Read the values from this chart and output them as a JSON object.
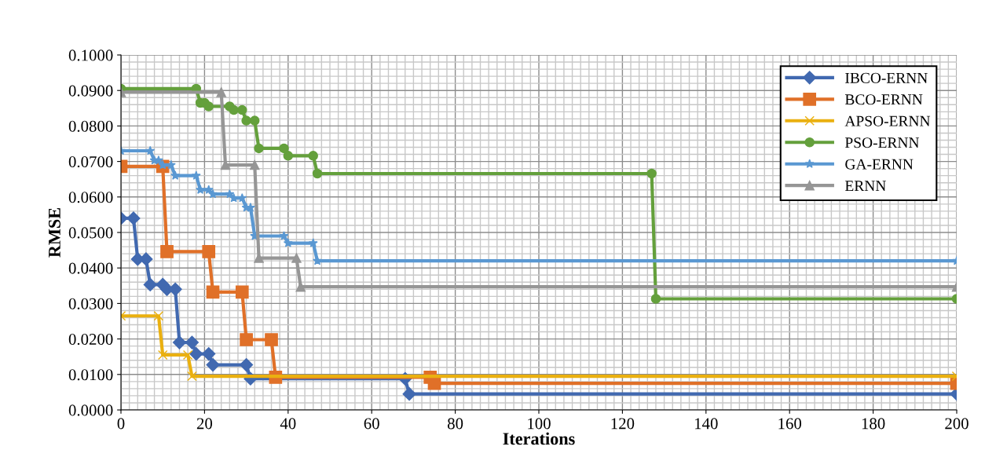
{
  "chart_data": {
    "type": "line",
    "xlabel": "Iterations",
    "ylabel": "RMSE",
    "xlim": [
      0,
      200
    ],
    "xticks": [
      0,
      20,
      40,
      60,
      80,
      100,
      120,
      140,
      160,
      180,
      200
    ],
    "ylim": [
      0,
      0.1
    ],
    "yticks": [
      {
        "value": 0,
        "label": "0.0000"
      },
      {
        "value": 0.01,
        "label": "0.0100"
      },
      {
        "value": 0.02,
        "label": "0.0200"
      },
      {
        "value": 0.03,
        "label": "0.0300"
      },
      {
        "value": 0.04,
        "label": "0.0400"
      },
      {
        "value": 0.05,
        "label": "0.0500"
      },
      {
        "value": 0.06,
        "label": "0.0600"
      },
      {
        "value": 0.07,
        "label": "0.0700"
      },
      {
        "value": 0.08,
        "label": "0.0800"
      },
      {
        "value": 0.09,
        "label": "0.0900"
      },
      {
        "value": 0.1,
        "label": "0.1000"
      }
    ],
    "grid": true,
    "legend": "top right",
    "line_style": "solid",
    "series": [
      {
        "name": "IBCO-ERNN",
        "color": "#4169b0",
        "marker": "diamond",
        "x": [
          0,
          3,
          4,
          6,
          7,
          10,
          11,
          13,
          14,
          17,
          18,
          21,
          22,
          30,
          31,
          68,
          69,
          200
        ],
        "values": [
          0.054,
          0.054,
          0.0425,
          0.0425,
          0.0353,
          0.0353,
          0.034,
          0.034,
          0.019,
          0.019,
          0.0158,
          0.0158,
          0.0127,
          0.0127,
          0.0088,
          0.0088,
          0.0045,
          0.0045
        ]
      },
      {
        "name": "BCO-ERNN",
        "color": "#e07028",
        "marker": "square",
        "x": [
          0,
          10,
          11,
          21,
          22,
          29,
          30,
          36,
          37,
          74,
          75,
          200
        ],
        "values": [
          0.0686,
          0.0686,
          0.0446,
          0.0446,
          0.0332,
          0.0332,
          0.0198,
          0.0198,
          0.0092,
          0.0092,
          0.0075,
          0.0075
        ]
      },
      {
        "name": "APSO-ERNN",
        "color": "#eab010",
        "marker": "cross",
        "x": [
          0,
          9,
          10,
          16,
          17,
          200
        ],
        "values": [
          0.0265,
          0.0265,
          0.0155,
          0.0155,
          0.0095,
          0.0095
        ]
      },
      {
        "name": "PSO-ERNN",
        "color": "#64a03c",
        "marker": "circle",
        "x": [
          0,
          18,
          19,
          20,
          21,
          26,
          27,
          29,
          30,
          32,
          33,
          39,
          40,
          46,
          47,
          127,
          128,
          200
        ],
        "values": [
          0.0905,
          0.0905,
          0.0865,
          0.0865,
          0.0855,
          0.0855,
          0.0845,
          0.0845,
          0.0815,
          0.0815,
          0.0737,
          0.0737,
          0.0716,
          0.0716,
          0.0666,
          0.0666,
          0.0313,
          0.0313
        ]
      },
      {
        "name": "GA-ERNN",
        "color": "#5a98d2",
        "marker": "star",
        "x": [
          0,
          7,
          8,
          9,
          10,
          12,
          13,
          18,
          19,
          21,
          22,
          26,
          27,
          29,
          30,
          31,
          32,
          39,
          40,
          46,
          47,
          200
        ],
        "values": [
          0.073,
          0.073,
          0.0703,
          0.0703,
          0.069,
          0.069,
          0.066,
          0.066,
          0.062,
          0.062,
          0.0608,
          0.0608,
          0.0597,
          0.0597,
          0.057,
          0.057,
          0.049,
          0.049,
          0.047,
          0.047,
          0.042,
          0.042
        ]
      },
      {
        "name": "ERNN",
        "color": "#969696",
        "marker": "triangle",
        "x": [
          0,
          24,
          25,
          32,
          33,
          42,
          43,
          200
        ],
        "values": [
          0.0895,
          0.0895,
          0.069,
          0.069,
          0.0428,
          0.0428,
          0.0347,
          0.0347
        ]
      }
    ]
  }
}
